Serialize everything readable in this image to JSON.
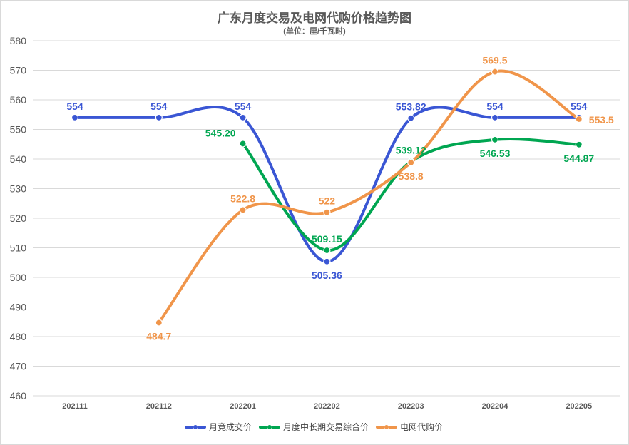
{
  "chart_data": {
    "type": "line",
    "title": "广东月度交易及电网代购价格趋势图",
    "subtitle": "(单位：厘/千瓦时)",
    "categories": [
      "202111",
      "202112",
      "202201",
      "202202",
      "202203",
      "202204",
      "202205"
    ],
    "ylim": [
      460,
      580
    ],
    "yticks": [
      460,
      470,
      480,
      490,
      500,
      510,
      520,
      530,
      540,
      550,
      560,
      570,
      580
    ],
    "grid": true,
    "legend_position": "bottom",
    "smooth": true,
    "series": [
      {
        "name": "月竞成交价",
        "color": "#3a56d4",
        "values": [
          554,
          554,
          554,
          505.36,
          553.82,
          554,
          554
        ],
        "labels": [
          "554",
          "554",
          "554",
          "505.36",
          "553.82",
          "554",
          "554"
        ]
      },
      {
        "name": "月度中长期交易综合价",
        "color": "#00a651",
        "values": [
          null,
          null,
          545.2,
          509.15,
          539.12,
          546.53,
          544.87
        ],
        "labels": [
          null,
          null,
          "545.20",
          "509.15",
          "539.12",
          "546.53",
          "544.87"
        ]
      },
      {
        "name": "电网代购价",
        "color": "#f0954a",
        "values": [
          null,
          484.7,
          522.8,
          522,
          538.8,
          569.5,
          553.5
        ],
        "labels": [
          null,
          "484.7",
          "522.8",
          "522",
          "538.8",
          "569.5",
          "553.5"
        ]
      }
    ]
  }
}
